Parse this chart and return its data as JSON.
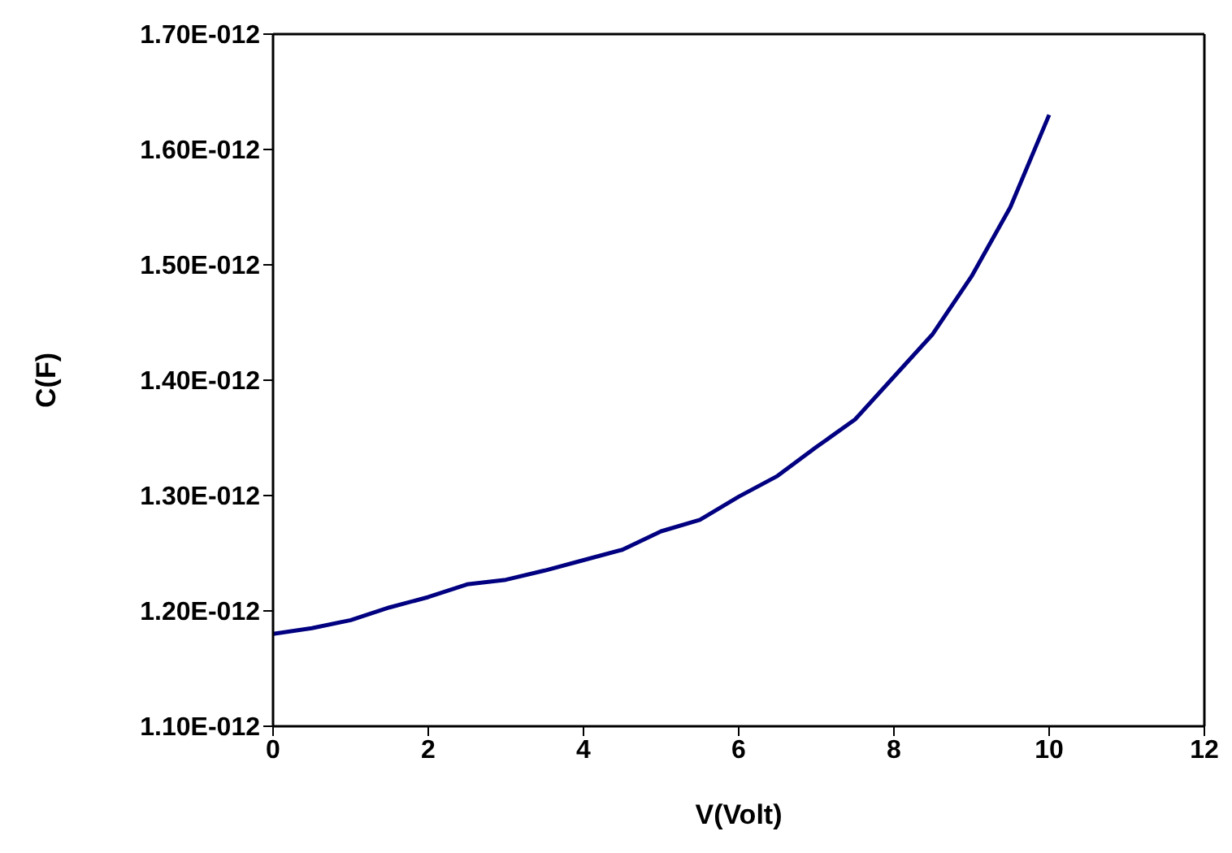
{
  "chart_data": {
    "type": "line",
    "xlabel": "V(Volt)",
    "ylabel": "C(F)",
    "x": [
      0,
      0.5,
      1,
      1.5,
      2,
      2.5,
      3,
      3.5,
      4,
      4.5,
      5,
      5.5,
      6,
      6.5,
      7,
      7.5,
      8,
      8.5,
      9,
      9.5,
      10
    ],
    "series": [
      {
        "color": "#000080",
        "values": [
          1.18e-12,
          1.185e-12,
          1.192e-12,
          1.203e-12,
          1.212e-12,
          1.223e-12,
          1.227e-12,
          1.235e-12,
          1.244e-12,
          1.253e-12,
          1.269e-12,
          1.279e-12,
          1.299e-12,
          1.317e-12,
          1.342e-12,
          1.366e-12,
          1.403e-12,
          1.44e-12,
          1.49e-12,
          1.55e-12,
          1.63e-12
        ]
      }
    ],
    "xlim": [
      0,
      12
    ],
    "xticks": [
      0,
      2,
      4,
      6,
      8,
      10,
      12
    ],
    "ylim": [
      1.1e-12,
      1.7e-12
    ],
    "yticks": [
      {
        "value": 1.1e-12,
        "label": "1.10E-012"
      },
      {
        "value": 1.2e-12,
        "label": "1.20E-012"
      },
      {
        "value": 1.3e-12,
        "label": "1.30E-012"
      },
      {
        "value": 1.4e-12,
        "label": "1.40E-012"
      },
      {
        "value": 1.5e-12,
        "label": "1.50E-012"
      },
      {
        "value": 1.6e-12,
        "label": "1.60E-012"
      },
      {
        "value": 1.7e-12,
        "label": "1.70E-012"
      }
    ],
    "grid": false,
    "legend": false,
    "marker": "none",
    "line_style": "solid"
  }
}
